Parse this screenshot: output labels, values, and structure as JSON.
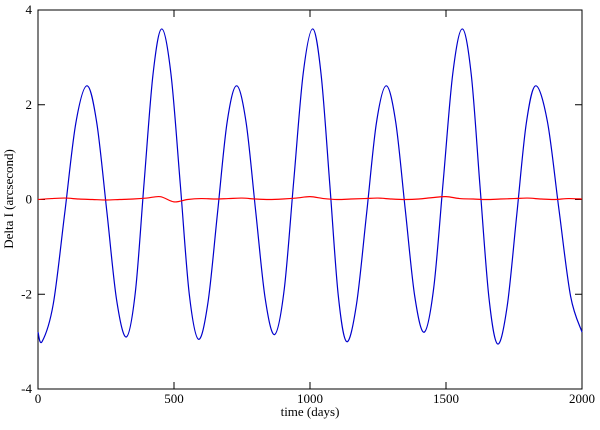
{
  "chart_data": {
    "type": "line",
    "xlabel": "time (days)",
    "ylabel": "Delta I (arcsecond)",
    "xlim": [
      0,
      2000
    ],
    "xticks": [
      0,
      500,
      1000,
      1500,
      2000
    ],
    "ylim": [
      -4,
      4
    ],
    "yticks": [
      -4,
      -2,
      0,
      2,
      4
    ],
    "series": [
      {
        "color": "#0000cc",
        "x": [
          0,
          15,
          56,
          98,
          139,
          180,
          216,
          253,
          289,
          325,
          358,
          390,
          423,
          455,
          489,
          523,
          556,
          590,
          625,
          660,
          695,
          730,
          765,
          800,
          835,
          870,
          905,
          940,
          975,
          1010,
          1041,
          1073,
          1104,
          1135,
          1171,
          1208,
          1244,
          1280,
          1315,
          1350,
          1385,
          1420,
          1455,
          1490,
          1525,
          1560,
          1593,
          1625,
          1658,
          1690,
          1725,
          1760,
          1795,
          1830,
          1873,
          1915,
          1958,
          2000
        ],
        "values": [
          -2.8,
          -3.0,
          -2.21,
          -0.3,
          1.61,
          2.4,
          1.62,
          -0.25,
          -2.12,
          -2.9,
          -1.95,
          0.35,
          2.65,
          3.6,
          2.64,
          0.33,
          -1.99,
          -2.95,
          -2.17,
          -0.28,
          1.62,
          2.4,
          1.63,
          -0.23,
          -2.08,
          -2.85,
          -1.91,
          0.38,
          2.66,
          3.6,
          2.63,
          0.3,
          -2.03,
          -3.0,
          -2.21,
          -0.3,
          1.61,
          2.4,
          1.64,
          -0.2,
          -2.04,
          -2.8,
          -1.86,
          0.4,
          2.66,
          3.6,
          2.63,
          0.28,
          -2.08,
          -3.05,
          -2.25,
          -0.33,
          1.6,
          2.4,
          1.64,
          -0.2,
          -2.04,
          -2.8
        ]
      },
      {
        "color": "#ff0000",
        "x": [
          0,
          50,
          100,
          150,
          200,
          250,
          300,
          350,
          400,
          450,
          500,
          550,
          600,
          650,
          700,
          750,
          800,
          850,
          900,
          950,
          1000,
          1050,
          1100,
          1150,
          1200,
          1250,
          1300,
          1350,
          1400,
          1450,
          1500,
          1550,
          1600,
          1650,
          1700,
          1750,
          1800,
          1850,
          1900,
          1950,
          2000
        ],
        "values": [
          0.0,
          0.02,
          0.03,
          0.01,
          0.0,
          -0.01,
          0.0,
          0.01,
          0.03,
          0.06,
          -0.05,
          0.0,
          0.02,
          0.01,
          0.02,
          0.03,
          0.01,
          0.0,
          0.01,
          0.03,
          0.06,
          0.02,
          0.0,
          0.01,
          0.02,
          0.03,
          0.01,
          0.0,
          0.01,
          0.04,
          0.06,
          0.02,
          0.01,
          0.0,
          0.01,
          0.02,
          0.03,
          0.01,
          0.0,
          0.02,
          0.01
        ]
      }
    ]
  }
}
